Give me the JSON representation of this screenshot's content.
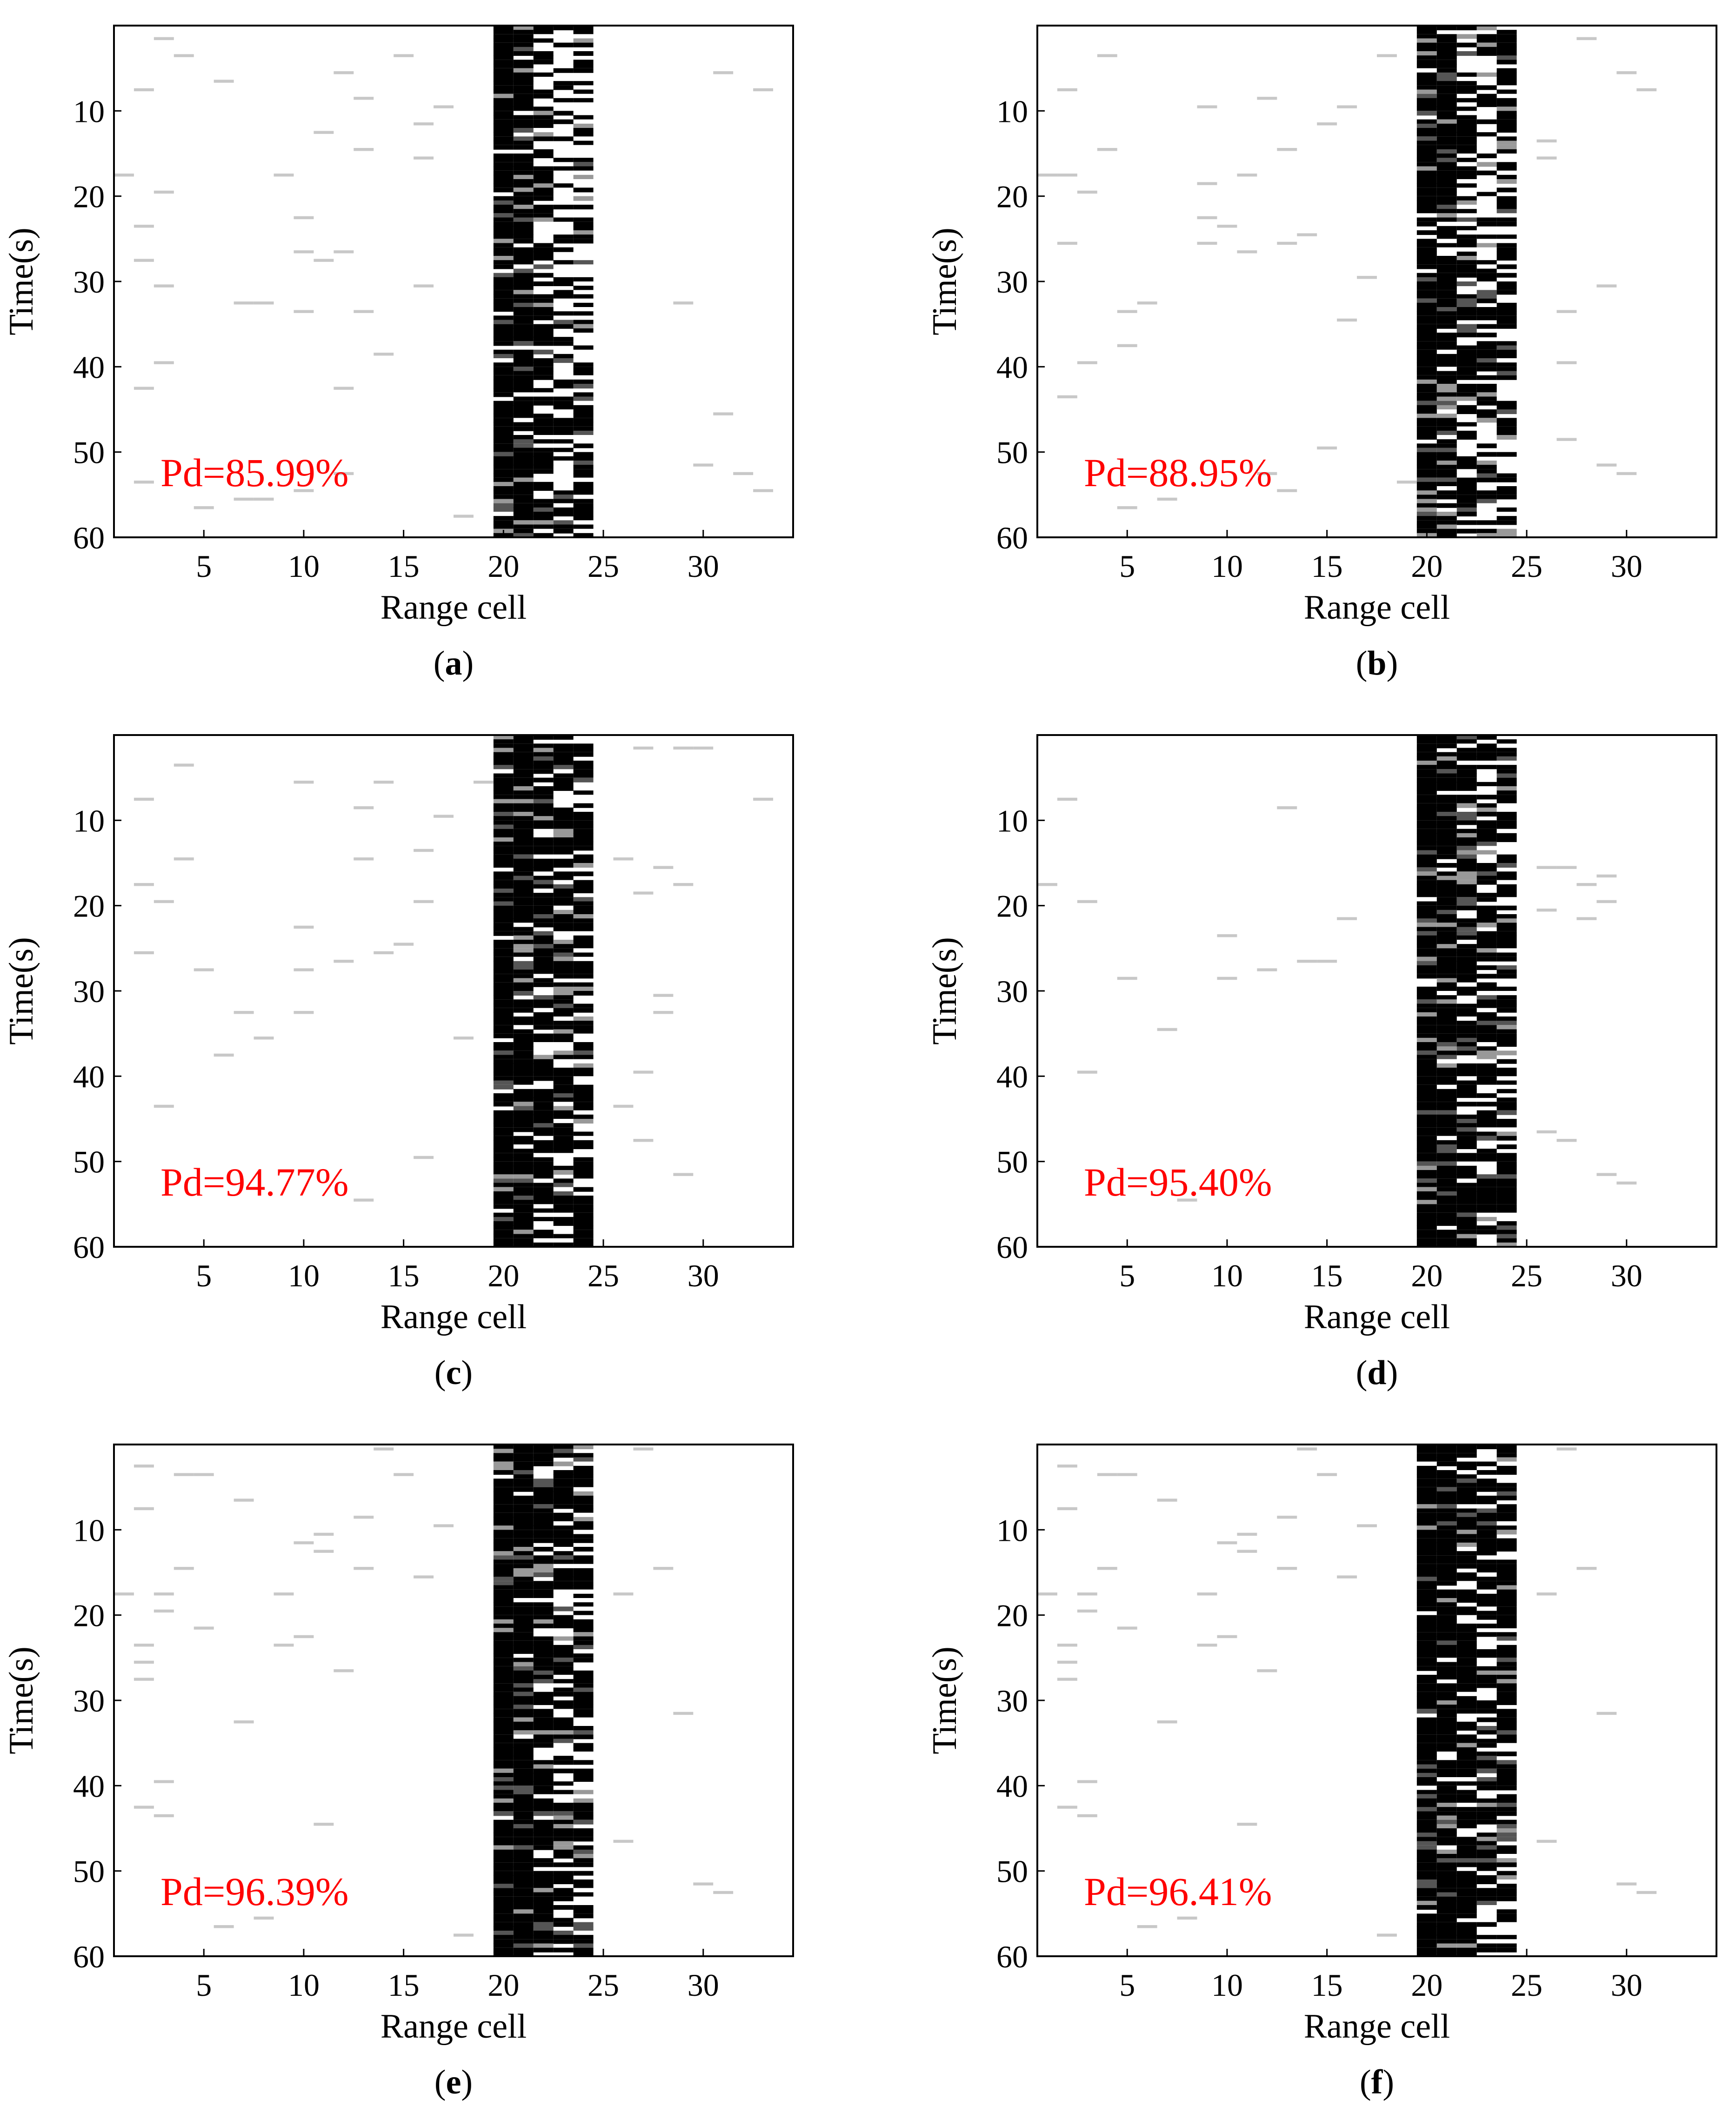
{
  "figure": {
    "axis_labels": {
      "x": "Range cell",
      "y": "Time(s)"
    },
    "colors": {
      "axis": "#000000",
      "detection": "#000000",
      "false_alarm": "#c8c8c8",
      "annotation": "#ff0000"
    }
  },
  "chart_data": [
    {
      "type": "heatmap",
      "panel": "a",
      "caption_open": "(",
      "caption_letter": "a",
      "caption_close": ")",
      "annotation": "Pd=85.99%",
      "pd_percent": 85.99,
      "xlabel": "Range cell",
      "ylabel": "Time(s)",
      "xlim": [
        0.5,
        34.5
      ],
      "ylim": [
        0,
        60
      ],
      "y_reversed": true,
      "xticks": [
        5,
        10,
        15,
        20,
        25,
        30
      ],
      "yticks": [
        10,
        20,
        30,
        40,
        50,
        60
      ],
      "target_cells": [
        20,
        21,
        22,
        23,
        24
      ],
      "target_density": [
        0.93,
        0.88,
        0.6,
        0.48,
        0.58
      ],
      "target_first_row": 1,
      "seed": 11,
      "false_alarms": [
        [
          1,
          18
        ],
        [
          2,
          8
        ],
        [
          2,
          24
        ],
        [
          2,
          28
        ],
        [
          2,
          43
        ],
        [
          2,
          54
        ],
        [
          3,
          2
        ],
        [
          3,
          20
        ],
        [
          3,
          31
        ],
        [
          3,
          40
        ],
        [
          4,
          4
        ],
        [
          5,
          57
        ],
        [
          6,
          7
        ],
        [
          7,
          33
        ],
        [
          7,
          56
        ],
        [
          8,
          33
        ],
        [
          8,
          56
        ],
        [
          9,
          18
        ],
        [
          10,
          23
        ],
        [
          10,
          27
        ],
        [
          10,
          34
        ],
        [
          10,
          55
        ],
        [
          11,
          13
        ],
        [
          11,
          28
        ],
        [
          12,
          6
        ],
        [
          12,
          27
        ],
        [
          12,
          43
        ],
        [
          12,
          53
        ],
        [
          13,
          9
        ],
        [
          13,
          15
        ],
        [
          13,
          34
        ],
        [
          14,
          39
        ],
        [
          15,
          4
        ],
        [
          16,
          12
        ],
        [
          16,
          16
        ],
        [
          16,
          31
        ],
        [
          17,
          10
        ],
        [
          18,
          58
        ],
        [
          29,
          33
        ],
        [
          30,
          52
        ],
        [
          31,
          6
        ],
        [
          31,
          46
        ],
        [
          32,
          53
        ],
        [
          33,
          8
        ],
        [
          33,
          55
        ]
      ]
    },
    {
      "type": "heatmap",
      "panel": "b",
      "caption_open": "(",
      "caption_letter": "b",
      "caption_close": ")",
      "annotation": "Pd=88.95%",
      "pd_percent": 88.95,
      "xlabel": "Range cell",
      "ylabel": "Time(s)",
      "xlim": [
        0.5,
        34.5
      ],
      "ylim": [
        0,
        60
      ],
      "y_reversed": true,
      "xticks": [
        5,
        10,
        15,
        20,
        25,
        30
      ],
      "yticks": [
        10,
        20,
        30,
        40,
        50,
        60
      ],
      "target_cells": [
        20,
        21,
        22,
        23,
        24
      ],
      "target_density": [
        0.93,
        0.9,
        0.65,
        0.55,
        0.68
      ],
      "target_first_row": 1,
      "seed": 23,
      "false_alarms": [
        [
          1,
          18
        ],
        [
          2,
          8
        ],
        [
          2,
          18
        ],
        [
          2,
          26
        ],
        [
          2,
          44
        ],
        [
          3,
          20
        ],
        [
          3,
          40
        ],
        [
          4,
          4
        ],
        [
          4,
          15
        ],
        [
          5,
          34
        ],
        [
          5,
          38
        ],
        [
          5,
          57
        ],
        [
          6,
          33
        ],
        [
          7,
          56
        ],
        [
          9,
          10
        ],
        [
          9,
          19
        ],
        [
          9,
          23
        ],
        [
          9,
          26
        ],
        [
          10,
          24
        ],
        [
          11,
          18
        ],
        [
          11,
          27
        ],
        [
          12,
          9
        ],
        [
          12,
          53
        ],
        [
          13,
          15
        ],
        [
          13,
          26
        ],
        [
          13,
          55
        ],
        [
          14,
          25
        ],
        [
          15,
          12
        ],
        [
          15,
          50
        ],
        [
          16,
          10
        ],
        [
          16,
          35
        ],
        [
          17,
          30
        ],
        [
          18,
          4
        ],
        [
          19,
          54
        ],
        [
          26,
          14
        ],
        [
          26,
          16
        ],
        [
          27,
          34
        ],
        [
          27,
          40
        ],
        [
          27,
          49
        ],
        [
          28,
          2
        ],
        [
          29,
          31
        ],
        [
          29,
          52
        ],
        [
          30,
          6
        ],
        [
          30,
          53
        ],
        [
          31,
          8
        ]
      ]
    },
    {
      "type": "heatmap",
      "panel": "c",
      "caption_open": "(",
      "caption_letter": "c",
      "caption_close": ")",
      "annotation": "Pd=94.77%",
      "pd_percent": 94.77,
      "xlabel": "Range cell",
      "ylabel": "Time(s)",
      "xlim": [
        0.5,
        34.5
      ],
      "ylim": [
        0,
        60
      ],
      "y_reversed": true,
      "xticks": [
        5,
        10,
        15,
        20,
        25,
        30
      ],
      "yticks": [
        10,
        20,
        30,
        40,
        50,
        60
      ],
      "target_cells": [
        20,
        21,
        22,
        23,
        24
      ],
      "target_density": [
        0.95,
        0.93,
        0.78,
        0.68,
        0.74
      ],
      "target_first_row": 1,
      "seed": 37,
      "false_alarms": [
        [
          2,
          8
        ],
        [
          2,
          18
        ],
        [
          2,
          26
        ],
        [
          3,
          20
        ],
        [
          3,
          44
        ],
        [
          4,
          4
        ],
        [
          4,
          15
        ],
        [
          5,
          28
        ],
        [
          6,
          38
        ],
        [
          7,
          33
        ],
        [
          8,
          36
        ],
        [
          10,
          6
        ],
        [
          10,
          23
        ],
        [
          10,
          28
        ],
        [
          10,
          33
        ],
        [
          12,
          27
        ],
        [
          13,
          9
        ],
        [
          13,
          15
        ],
        [
          13,
          55
        ],
        [
          14,
          6
        ],
        [
          14,
          26
        ],
        [
          15,
          25
        ],
        [
          16,
          14
        ],
        [
          16,
          20
        ],
        [
          16,
          50
        ],
        [
          17,
          10
        ],
        [
          18,
          36
        ],
        [
          19,
          6
        ],
        [
          26,
          15
        ],
        [
          26,
          44
        ],
        [
          27,
          2
        ],
        [
          27,
          19
        ],
        [
          27,
          40
        ],
        [
          27,
          48
        ],
        [
          28,
          16
        ],
        [
          28,
          31
        ],
        [
          28,
          33
        ],
        [
          29,
          2
        ],
        [
          29,
          18
        ],
        [
          29,
          52
        ],
        [
          30,
          2
        ],
        [
          33,
          8
        ]
      ]
    },
    {
      "type": "heatmap",
      "panel": "d",
      "caption_open": "(",
      "caption_letter": "d",
      "caption_close": ")",
      "annotation": "Pd=95.40%",
      "pd_percent": 95.4,
      "xlabel": "Range cell",
      "ylabel": "Time(s)",
      "xlim": [
        0.5,
        34.5
      ],
      "ylim": [
        0,
        60
      ],
      "y_reversed": true,
      "xticks": [
        5,
        10,
        15,
        20,
        25,
        30
      ],
      "yticks": [
        10,
        20,
        30,
        40,
        50,
        60
      ],
      "target_cells": [
        20,
        21,
        22,
        23,
        24
      ],
      "target_density": [
        0.95,
        0.93,
        0.8,
        0.7,
        0.76
      ],
      "target_first_row": 1,
      "seed": 41,
      "false_alarms": [
        [
          1,
          18
        ],
        [
          2,
          8
        ],
        [
          3,
          20
        ],
        [
          3,
          40
        ],
        [
          5,
          29
        ],
        [
          7,
          35
        ],
        [
          8,
          55
        ],
        [
          10,
          24
        ],
        [
          10,
          29
        ],
        [
          12,
          28
        ],
        [
          13,
          9
        ],
        [
          14,
          27
        ],
        [
          15,
          27
        ],
        [
          16,
          22
        ],
        [
          26,
          16
        ],
        [
          26,
          21
        ],
        [
          26,
          47
        ],
        [
          27,
          16
        ],
        [
          27,
          48
        ],
        [
          28,
          18
        ],
        [
          28,
          22
        ],
        [
          29,
          17
        ],
        [
          29,
          20
        ],
        [
          29,
          52
        ],
        [
          30,
          53
        ]
      ]
    },
    {
      "type": "heatmap",
      "panel": "e",
      "caption_open": "(",
      "caption_letter": "e",
      "caption_close": ")",
      "annotation": "Pd=96.39%",
      "pd_percent": 96.39,
      "xlabel": "Range cell",
      "ylabel": "Time(s)",
      "xlim": [
        0.5,
        34.5
      ],
      "ylim": [
        0,
        60
      ],
      "y_reversed": true,
      "xticks": [
        5,
        10,
        15,
        20,
        25,
        30
      ],
      "yticks": [
        10,
        20,
        30,
        40,
        50,
        60
      ],
      "target_cells": [
        20,
        21,
        22,
        23,
        24
      ],
      "target_density": [
        0.96,
        0.94,
        0.82,
        0.72,
        0.78
      ],
      "target_first_row": 1,
      "seed": 53,
      "false_alarms": [
        [
          1,
          18
        ],
        [
          2,
          3
        ],
        [
          2,
          8
        ],
        [
          2,
          24
        ],
        [
          2,
          26
        ],
        [
          2,
          28
        ],
        [
          2,
          43
        ],
        [
          3,
          18
        ],
        [
          3,
          20
        ],
        [
          3,
          40
        ],
        [
          3,
          44
        ],
        [
          4,
          4
        ],
        [
          4,
          15
        ],
        [
          5,
          4
        ],
        [
          5,
          22
        ],
        [
          6,
          57
        ],
        [
          7,
          7
        ],
        [
          7,
          33
        ],
        [
          8,
          56
        ],
        [
          9,
          18
        ],
        [
          9,
          24
        ],
        [
          10,
          12
        ],
        [
          10,
          23
        ],
        [
          11,
          11
        ],
        [
          11,
          13
        ],
        [
          11,
          45
        ],
        [
          12,
          27
        ],
        [
          13,
          9
        ],
        [
          13,
          15
        ],
        [
          14,
          1
        ],
        [
          15,
          4
        ],
        [
          16,
          16
        ],
        [
          17,
          10
        ],
        [
          18,
          58
        ],
        [
          26,
          18
        ],
        [
          26,
          47
        ],
        [
          27,
          1
        ],
        [
          28,
          15
        ],
        [
          29,
          32
        ],
        [
          30,
          52
        ],
        [
          31,
          53
        ]
      ]
    },
    {
      "type": "heatmap",
      "panel": "f",
      "caption_open": "(",
      "caption_letter": "f",
      "caption_close": ")",
      "annotation": "Pd=96.41%",
      "pd_percent": 96.41,
      "xlabel": "Range cell",
      "ylabel": "Time(s)",
      "xlim": [
        0.5,
        34.5
      ],
      "ylim": [
        0,
        60
      ],
      "y_reversed": true,
      "xticks": [
        5,
        10,
        15,
        20,
        25,
        30
      ],
      "yticks": [
        10,
        20,
        30,
        40,
        50,
        60
      ],
      "target_cells": [
        20,
        21,
        22,
        23,
        24
      ],
      "target_density": [
        0.96,
        0.94,
        0.82,
        0.73,
        0.78
      ],
      "target_first_row": 1,
      "seed": 59,
      "false_alarms": [
        [
          1,
          18
        ],
        [
          2,
          3
        ],
        [
          2,
          8
        ],
        [
          2,
          24
        ],
        [
          2,
          26
        ],
        [
          2,
          28
        ],
        [
          2,
          43
        ],
        [
          3,
          18
        ],
        [
          3,
          20
        ],
        [
          3,
          40
        ],
        [
          3,
          44
        ],
        [
          4,
          4
        ],
        [
          4,
          15
        ],
        [
          5,
          4
        ],
        [
          5,
          22
        ],
        [
          6,
          57
        ],
        [
          7,
          7
        ],
        [
          7,
          33
        ],
        [
          8,
          56
        ],
        [
          9,
          18
        ],
        [
          9,
          24
        ],
        [
          10,
          12
        ],
        [
          10,
          23
        ],
        [
          11,
          11
        ],
        [
          11,
          13
        ],
        [
          11,
          45
        ],
        [
          12,
          27
        ],
        [
          13,
          9
        ],
        [
          13,
          15
        ],
        [
          14,
          1
        ],
        [
          15,
          4
        ],
        [
          16,
          16
        ],
        [
          17,
          10
        ],
        [
          18,
          58
        ],
        [
          26,
          18
        ],
        [
          26,
          47
        ],
        [
          27,
          1
        ],
        [
          28,
          15
        ],
        [
          29,
          32
        ],
        [
          30,
          52
        ],
        [
          31,
          53
        ]
      ]
    }
  ]
}
